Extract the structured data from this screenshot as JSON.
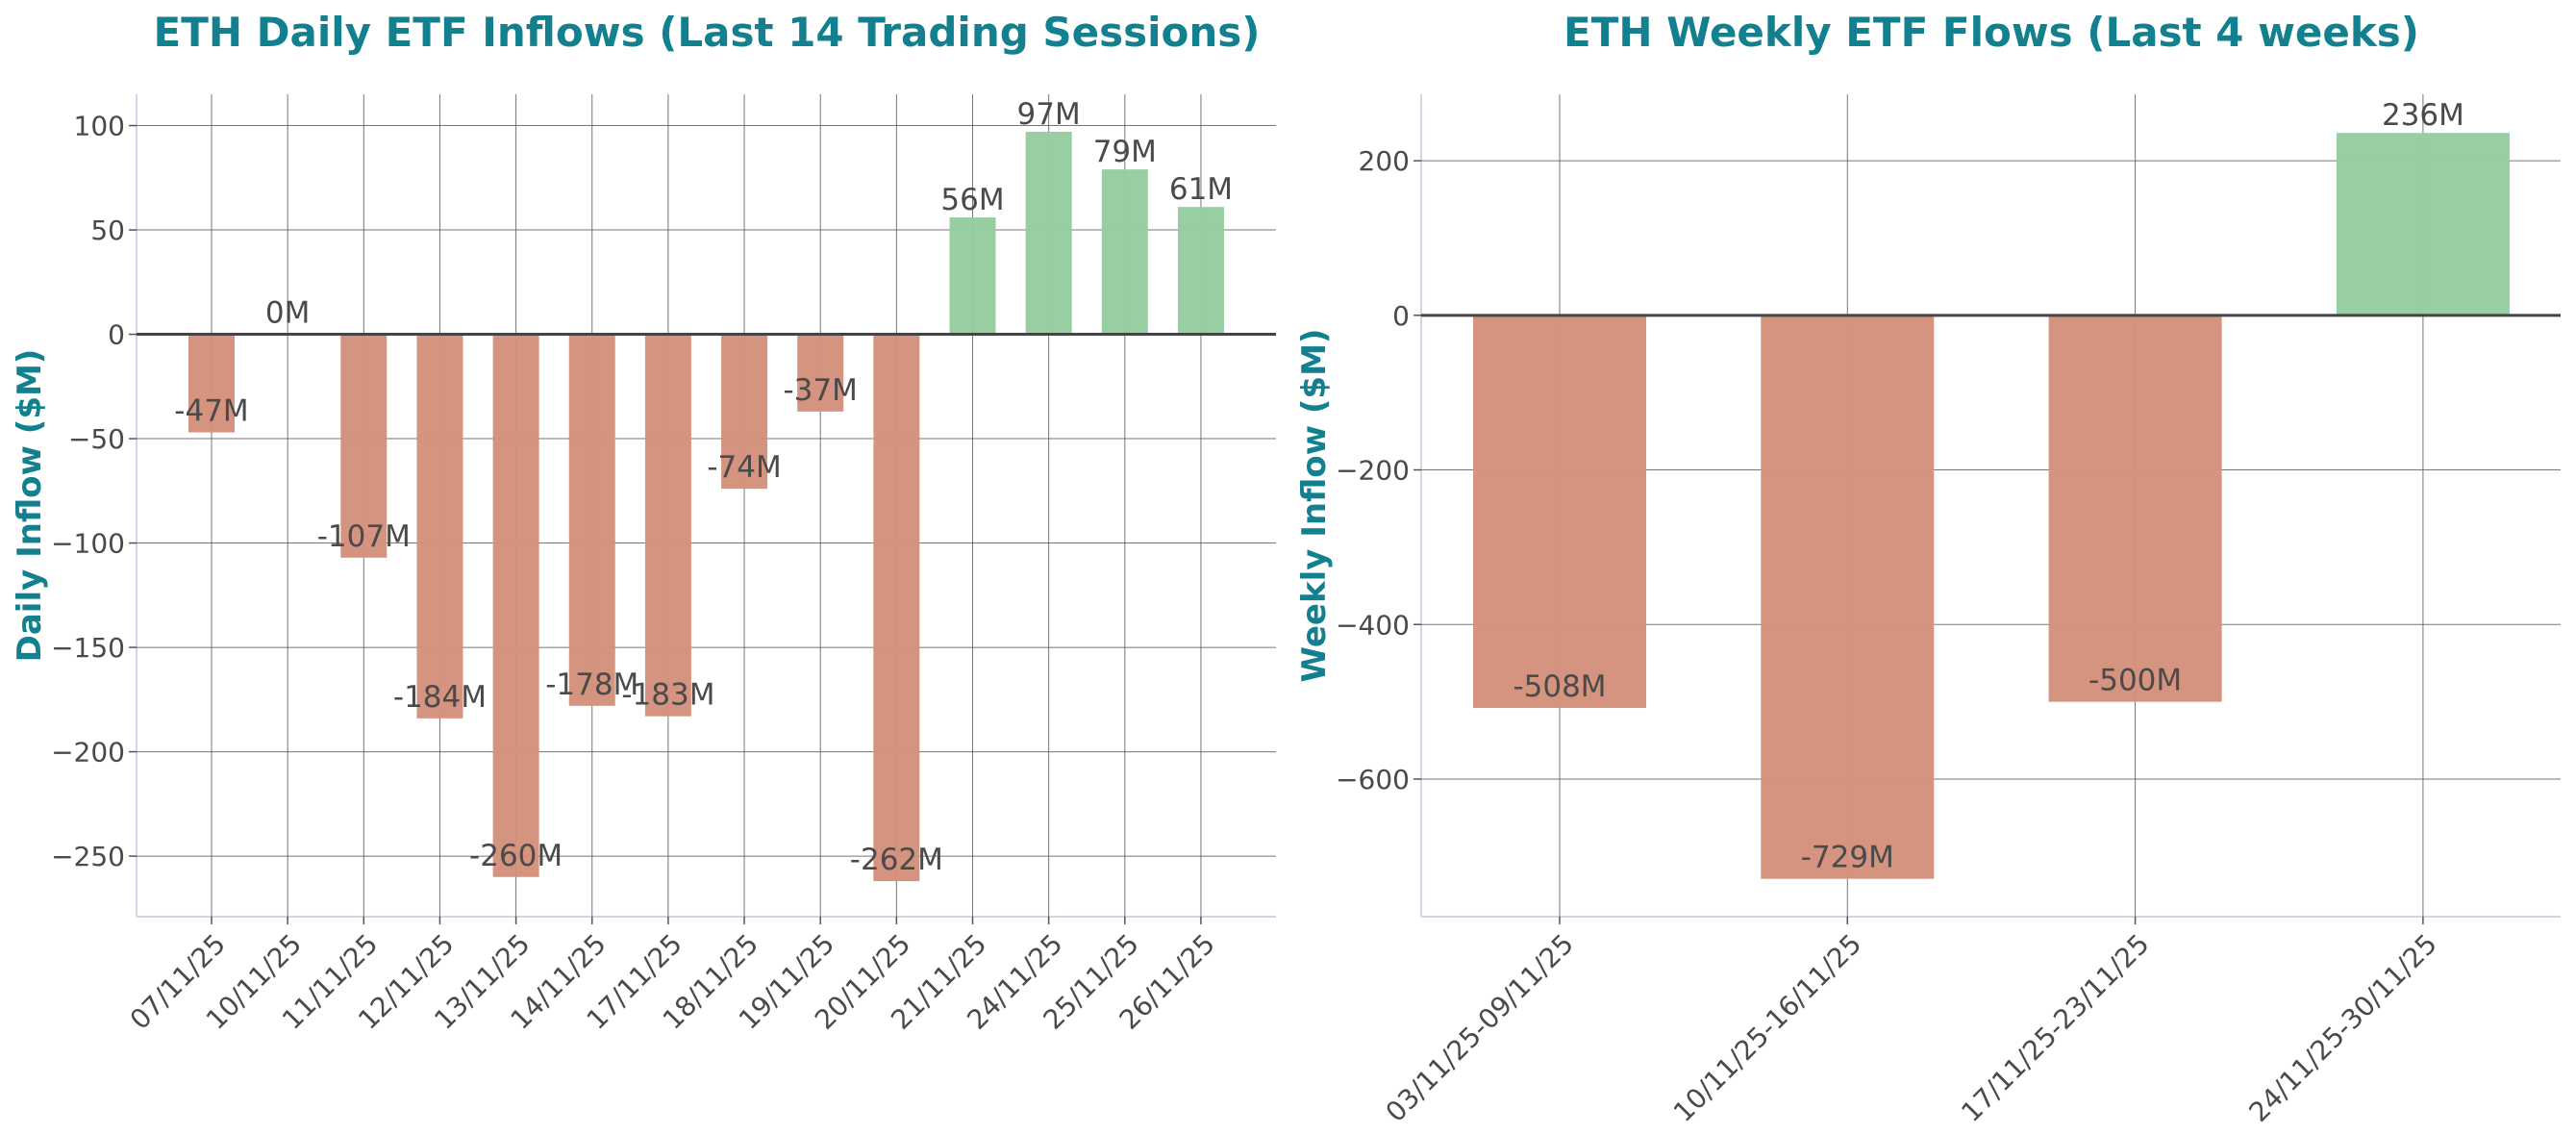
{
  "colors": {
    "title": "#13808f",
    "negative": "#d4917c",
    "positive": "#94cda0",
    "grid": "#555555",
    "zero_line": "#444444"
  },
  "chart_data": [
    {
      "type": "bar",
      "title": "ETH Daily ETF Inflows (Last 14 Trading Sessions)",
      "xlabel": "",
      "ylabel": "Daily Inflow ($M)",
      "categories": [
        "07/11/25",
        "10/11/25",
        "11/11/25",
        "12/11/25",
        "13/11/25",
        "14/11/25",
        "17/11/25",
        "18/11/25",
        "19/11/25",
        "20/11/25",
        "21/11/25",
        "24/11/25",
        "25/11/25",
        "26/11/25"
      ],
      "values": [
        -47,
        0,
        -107,
        -184,
        -260,
        -178,
        -183,
        -74,
        -37,
        -262,
        56,
        97,
        79,
        61
      ],
      "data_labels": [
        "-47M",
        "0M",
        "-107M",
        "-184M",
        "-260M",
        "-178M",
        "-183M",
        "-74M",
        "-37M",
        "-262M",
        "56M",
        "97M",
        "79M",
        "61M"
      ],
      "ylim": [
        -279,
        115
      ],
      "yticks": [
        -250,
        -200,
        -150,
        -100,
        -50,
        0,
        50,
        100
      ],
      "ytick_labels": [
        "−250",
        "−200",
        "−150",
        "−100",
        "−50",
        "0",
        "50",
        "100"
      ],
      "grid": true
    },
    {
      "type": "bar",
      "title": "ETH Weekly ETF Flows (Last 4 weeks)",
      "xlabel": "",
      "ylabel": "Weekly Inflow ($M)",
      "categories": [
        "03/11/25-09/11/25",
        "10/11/25-16/11/25",
        "17/11/25-23/11/25",
        "24/11/25-30/11/25"
      ],
      "values": [
        -508,
        -729,
        -500,
        236
      ],
      "data_labels": [
        "-508M",
        "-729M",
        "-500M",
        "236M"
      ],
      "ylim": [
        -778,
        286
      ],
      "yticks": [
        -600,
        -400,
        -200,
        0,
        200
      ],
      "ytick_labels": [
        "−600",
        "−400",
        "−200",
        "0",
        "200"
      ],
      "grid": true
    }
  ]
}
